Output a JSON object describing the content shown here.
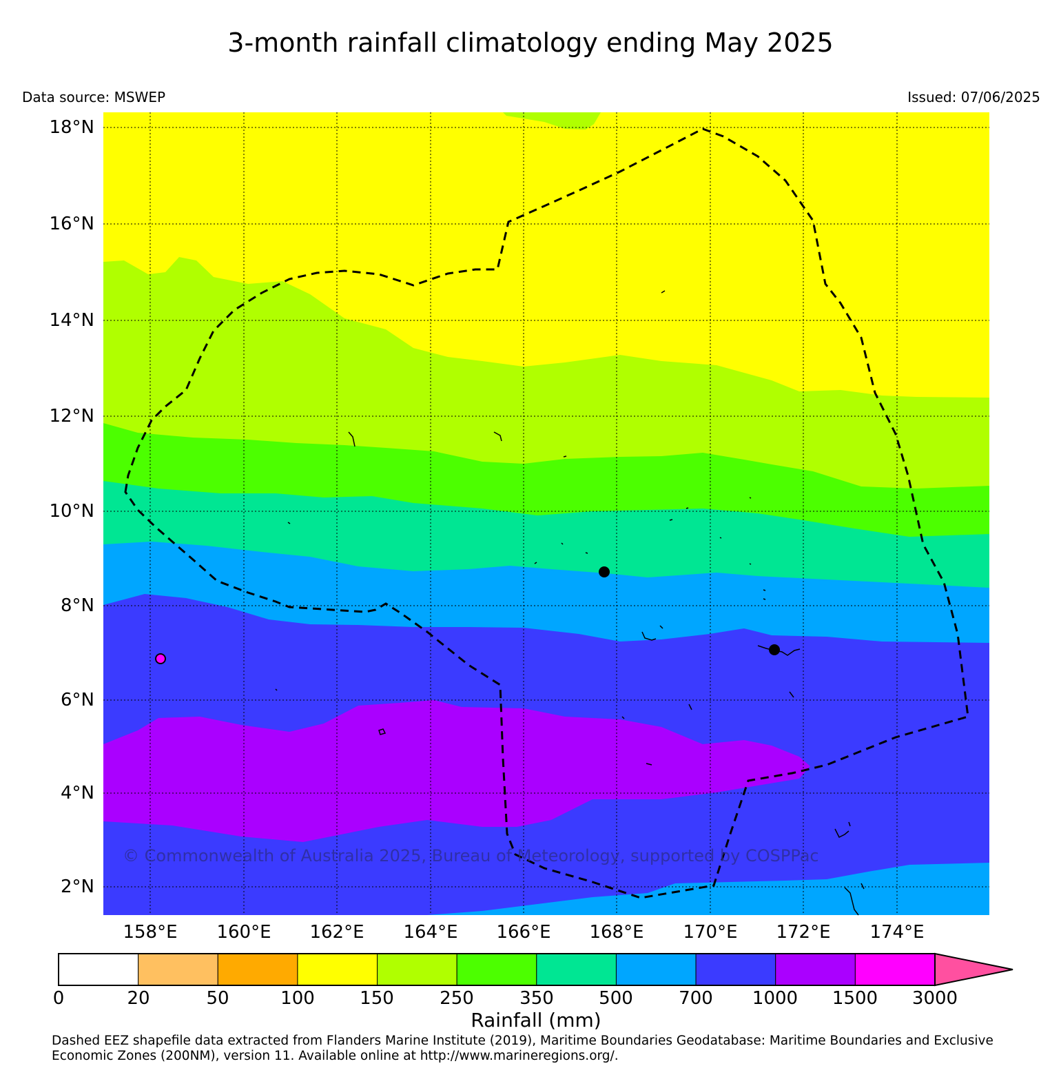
{
  "header": {
    "title": "3-month rainfall climatology ending May 2025",
    "data_source": "Data source: MSWEP",
    "issued": "Issued: 07/06/2025"
  },
  "map": {
    "lat_labels": [
      "18°N",
      "16°N",
      "14°N",
      "12°N",
      "10°N",
      "8°N",
      "6°N",
      "4°N",
      "2°N"
    ],
    "lon_labels": [
      "158°E",
      "160°E",
      "162°E",
      "164°E",
      "166°E",
      "168°E",
      "170°E",
      "172°E",
      "174°E"
    ],
    "copyright": "© Commonwealth of Australia 2025, Bureau of Meteorology, supported by COSPPac",
    "band_colors": {
      "100-150": "#ffff00",
      "150-250": "#b0ff00",
      "250-350": "#4cff00",
      "350-500": "#00e693",
      "500-700": "#00a6ff",
      "700-1000": "#3b3bff",
      "1000-1500": "#aa00ff"
    }
  },
  "colorbar": {
    "ticks": [
      "0",
      "20",
      "50",
      "100",
      "150",
      "250",
      "350",
      "500",
      "700",
      "1000",
      "1500",
      "3000"
    ],
    "colors": [
      "#ffffff",
      "#ffc060",
      "#ffaa00",
      "#ffff00",
      "#b0ff00",
      "#4cff00",
      "#00e693",
      "#00a6ff",
      "#3b3bff",
      "#aa00ff",
      "#ff00ff"
    ],
    "extend_color": "#ff50a0",
    "label": "Rainfall (mm)"
  },
  "footer": {
    "credit": "Dashed EEZ shapefile data extracted from Flanders Marine Institute (2019), Maritime Boundaries Geodatabase: Maritime Boundaries and Exclusive Economic Zones (200NM), version 11. Available online at http://www.marineregions.org/."
  }
}
